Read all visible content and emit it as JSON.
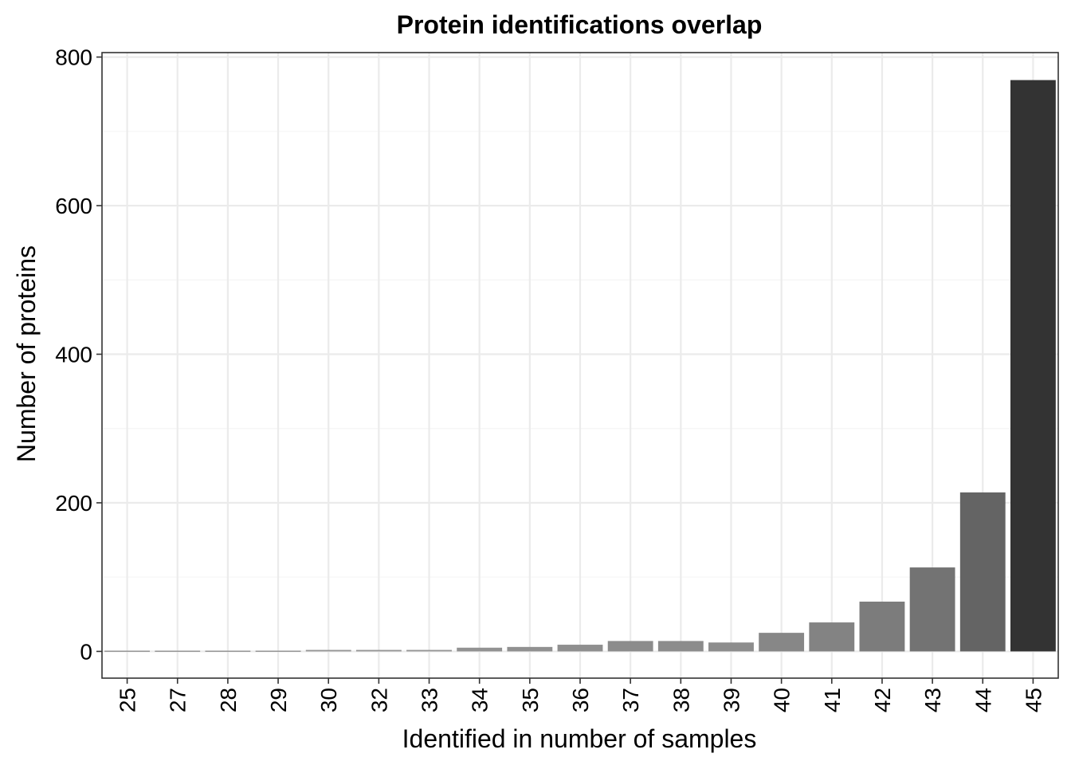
{
  "chart_data": {
    "type": "bar",
    "title": "Protein identifications overlap",
    "xlabel": "Identified in number of samples",
    "ylabel": "Number of proteins",
    "categories": [
      "25",
      "27",
      "28",
      "29",
      "30",
      "32",
      "33",
      "34",
      "35",
      "36",
      "37",
      "38",
      "39",
      "40",
      "41",
      "42",
      "43",
      "44",
      "45"
    ],
    "values": [
      1,
      1,
      1,
      1,
      2,
      2,
      2,
      5,
      6,
      9,
      14,
      14,
      12,
      25,
      39,
      67,
      113,
      214,
      769
    ],
    "ylim": [
      -36,
      806
    ],
    "yticks": [
      0,
      200,
      400,
      600,
      800
    ],
    "grid": true,
    "legend": "none",
    "colors": {
      "bar_light": "#9a9a9a",
      "bar_dark": "#333333",
      "grid_major": "#ebebeb",
      "grid_minor": "#f5f5f5",
      "panel_border": "#333333",
      "axis_text": "#000000"
    }
  }
}
